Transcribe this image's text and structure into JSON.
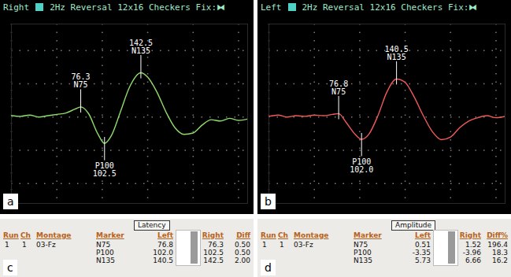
{
  "chart_data": [
    {
      "type": "line",
      "panel_label": "a",
      "title": "Right",
      "subtitle": "2Hz Reversal 12x16 Checkers Fix:⧓",
      "color": "#8fdc6a",
      "grid": true,
      "tick_labels": false,
      "xlim": [
        0,
        260
      ],
      "xticks": [
        0,
        50,
        100,
        150,
        200,
        250
      ],
      "ylim": [
        -13,
        14
      ],
      "yticks": [
        -10,
        -5,
        0,
        5,
        10
      ],
      "x": [
        0,
        10,
        20,
        30,
        40,
        50,
        60,
        70,
        76.3,
        85,
        95,
        102.5,
        110,
        120,
        130,
        142.5,
        150,
        160,
        170,
        180,
        190,
        200,
        210,
        220,
        230,
        240,
        250,
        260
      ],
      "values": [
        0.2,
        0.1,
        0.3,
        0.0,
        0.2,
        0.4,
        0.6,
        1.2,
        1.52,
        0.5,
        -2.5,
        -3.96,
        -2.8,
        0.8,
        4.5,
        6.66,
        6.0,
        3.8,
        0.8,
        -1.6,
        -2.6,
        -2.4,
        -1.2,
        -0.4,
        -0.6,
        -0.2,
        -0.5,
        -0.3
      ],
      "markers": [
        {
          "name": "N75",
          "latency": 76.3,
          "latency_label": "76.3",
          "amplitude": 1.52
        },
        {
          "name": "P100",
          "latency": 102.5,
          "latency_label": "102.5",
          "amplitude": -3.96
        },
        {
          "name": "N135",
          "latency": 142.5,
          "latency_label": "142.5",
          "amplitude": 6.66
        }
      ]
    },
    {
      "type": "line",
      "panel_label": "b",
      "title": "Left",
      "subtitle": "2Hz Reversal 12x16 Checkers Fix:⧓",
      "color": "#f05a5a",
      "grid": true,
      "tick_labels": false,
      "xlim": [
        0,
        260
      ],
      "xticks": [
        0,
        50,
        100,
        150,
        200,
        250
      ],
      "ylim": [
        -13,
        14
      ],
      "yticks": [
        -10,
        -5,
        0,
        5,
        10
      ],
      "x": [
        0,
        10,
        20,
        30,
        40,
        50,
        60,
        70,
        76.8,
        85,
        95,
        102.0,
        110,
        120,
        130,
        140.5,
        150,
        160,
        170,
        180,
        190,
        200,
        210,
        220,
        230,
        240,
        250,
        260
      ],
      "values": [
        0.1,
        0.3,
        0.0,
        0.2,
        0.1,
        0.3,
        0.2,
        0.4,
        0.51,
        -0.8,
        -2.6,
        -3.35,
        -2.6,
        0.2,
        3.8,
        5.73,
        5.2,
        3.0,
        0.2,
        -2.2,
        -3.4,
        -3.0,
        -1.6,
        -0.6,
        -0.1,
        0.2,
        -0.1,
        0.1
      ],
      "markers": [
        {
          "name": "N75",
          "latency": 76.8,
          "latency_label": "76.8",
          "amplitude": 0.51
        },
        {
          "name": "P100",
          "latency": 102.0,
          "latency_label": "102.0",
          "amplitude": -3.35
        },
        {
          "name": "N135",
          "latency": 140.5,
          "latency_label": "140.5",
          "amplitude": 5.73
        }
      ]
    }
  ],
  "tables": [
    {
      "panel_label": "c",
      "title": "Latency",
      "header": [
        "Run",
        "Ch",
        "Montage",
        "Marker",
        "Left",
        "Right",
        "Diff"
      ],
      "run": "1",
      "ch": "1",
      "montage": "03-Fz",
      "rows": [
        [
          "N75",
          "76.8",
          "76.3",
          "0.50"
        ],
        [
          "P100",
          "102.0",
          "102.5",
          "0.50"
        ],
        [
          "N135",
          "140.5",
          "142.5",
          "2.00"
        ]
      ]
    },
    {
      "panel_label": "d",
      "title": "Amplitude",
      "header": [
        "Run",
        "Ch",
        "Montage",
        "Marker",
        "Left",
        "Right",
        "Diff%"
      ],
      "run": "1",
      "ch": "1",
      "montage": "03-Fz",
      "rows": [
        [
          "N75",
          "0.51",
          "1.52",
          "196.4"
        ],
        [
          "P100",
          "-3.35",
          "-3.96",
          "18.3"
        ],
        [
          "N135",
          "5.73",
          "6.66",
          "16.2"
        ]
      ]
    }
  ]
}
